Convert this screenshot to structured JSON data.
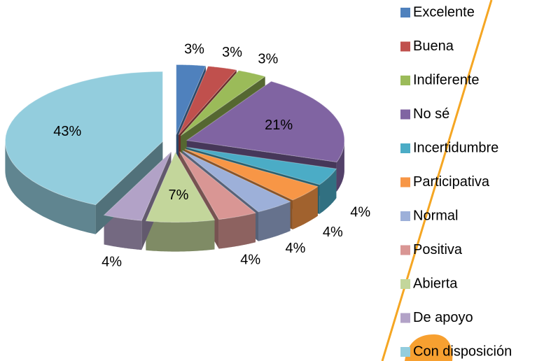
{
  "chart_data": {
    "type": "pie3d",
    "categories": [
      "Excelente",
      "Buena",
      "Indiferente",
      "No sé",
      "Incertidumbre",
      "Participativa",
      "Normal",
      "Positiva",
      "Abierta",
      "De apoyo",
      "Con disposición"
    ],
    "values": [
      3,
      3,
      3,
      21,
      4,
      4,
      4,
      4,
      7,
      4,
      43
    ],
    "value_labels": [
      "3%",
      "3%",
      "3%",
      "21%",
      "4%",
      "4%",
      "4%",
      "4%",
      "7%",
      "4%",
      "43%"
    ],
    "colors": [
      "#4F81BD",
      "#C0504D",
      "#9BBB59",
      "#8064A2",
      "#4BACC6",
      "#F79646",
      "#9DB0D9",
      "#D99694",
      "#C3D69B",
      "#B2A2C7",
      "#93CDDD"
    ],
    "legend": "right"
  }
}
